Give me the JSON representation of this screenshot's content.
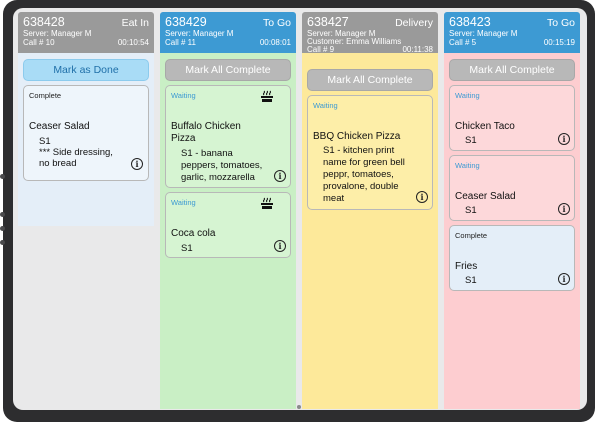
{
  "orders": [
    {
      "order_no": "638428",
      "type": "Eat In",
      "server": "Server: Manager M",
      "customer": "",
      "call": "Call # 10",
      "timer": "00:10:54",
      "action": "Mark as Done",
      "colors": {
        "header": "#9a9a9a",
        "body": "#e4eef8",
        "button_bg": "#a9dcf6",
        "button_text": "#1f6fa8"
      },
      "items": [
        {
          "status": "Complete",
          "name": "Ceaser Salad",
          "details": [
            "S1",
            "*** Side dressing,",
            "no bread"
          ]
        }
      ]
    },
    {
      "order_no": "638429",
      "type": "To Go",
      "server": "Server: Manager M",
      "customer": "",
      "call": "Call # 11",
      "timer": "00:08:01",
      "action": "Mark All Complete",
      "colors": {
        "header": "#3d9ad3",
        "body": "#c9efc5",
        "button_bg": "#b8b8b8",
        "button_text": "#ffffff"
      },
      "items": [
        {
          "status": "Waiting",
          "name_lines": [
            "Buffalo Chicken",
            "Pizza"
          ],
          "details": [
            "S1 - banana",
            "peppers, tomatoes,",
            "garlic, mozzarella"
          ],
          "icon": "cooking-icon"
        },
        {
          "status": "Waiting",
          "name": "Coca cola",
          "details": [
            "S1"
          ],
          "icon": "cooking-icon"
        }
      ]
    },
    {
      "order_no": "638427",
      "type": "Delivery",
      "server": "Server: Manager M",
      "customer": "Customer: Emma Williams",
      "call": "Call # 9",
      "timer": "00:11:38",
      "action": "Mark All Complete",
      "colors": {
        "header": "#9a9a9a",
        "body": "#fde99a",
        "button_bg": "#b8b8b8",
        "button_text": "#ffffff"
      },
      "items": [
        {
          "status": "Waiting",
          "name": "BBQ Chicken Pizza",
          "details": [
            "S1 - kitchen print",
            "name for green bell",
            "peppr, tomatoes,",
            "provalone, double",
            "meat"
          ]
        }
      ]
    },
    {
      "order_no": "638423",
      "type": "To Go",
      "server": "Server: Manager M",
      "customer": "",
      "call": "Call # 5",
      "timer": "00:15:19",
      "action": "Mark All Complete",
      "colors": {
        "header": "#3d9ad3",
        "body": "#fdcdd0",
        "button_bg": "#b8b8b8",
        "button_text": "#ffffff"
      },
      "items": [
        {
          "status": "Waiting",
          "name": "Chicken Taco",
          "details": [
            "S1"
          ]
        },
        {
          "status": "Waiting",
          "name": "Ceaser Salad",
          "details": [
            "S1"
          ]
        },
        {
          "status": "Complete",
          "name": "Fries",
          "details": [
            "S1"
          ]
        }
      ]
    }
  ],
  "status_colors": {
    "Waiting": "#3d9ad3",
    "Complete": "#222222"
  }
}
